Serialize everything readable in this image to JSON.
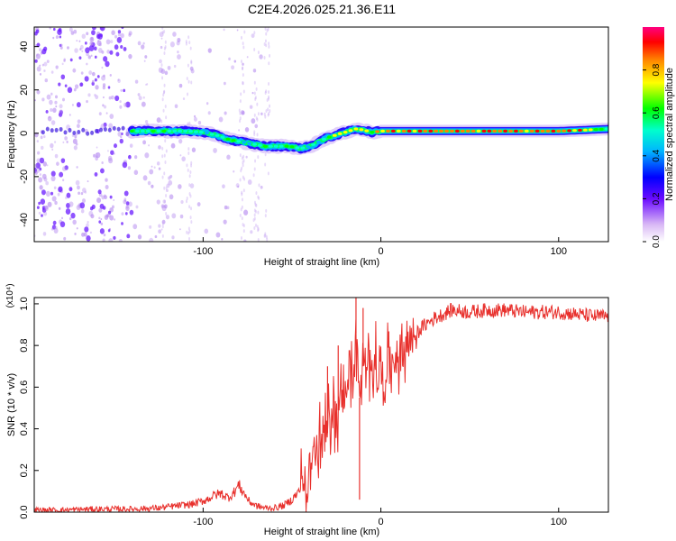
{
  "title": "C2E4.2026.025.21.36.E11",
  "chart_data": [
    {
      "type": "heatmap",
      "xlabel": "Height of straight line (km)",
      "ylabel": "Frequency (Hz)",
      "xlim": [
        -195,
        128
      ],
      "ylim": [
        -50,
        49
      ],
      "xticks": [
        -100,
        0,
        100
      ],
      "yticks": [
        -40,
        -20,
        0,
        20,
        40
      ],
      "colorbar": {
        "label": "Normalized spectral amplitude",
        "range": [
          0,
          1
        ],
        "ticks": [
          0.0,
          0.2,
          0.4,
          0.6,
          0.8
        ],
        "tick_labels": [
          "0.0",
          "0.2",
          "0.4",
          "0.6",
          "0.8"
        ]
      },
      "noise_region_x": [
        -195,
        -62
      ],
      "ridge": {
        "x": [
          -140,
          -125,
          -110,
          -100,
          -92,
          -85,
          -78,
          -72,
          -65,
          -58,
          -52,
          -45,
          -40,
          -35,
          -30,
          -26,
          -22,
          -18,
          -14,
          -10,
          -5,
          0,
          20,
          40,
          60,
          80,
          100,
          115,
          128
        ],
        "freq": [
          1,
          1,
          1,
          0.5,
          -1,
          -3,
          -4,
          -5,
          -6,
          -6,
          -6,
          -7,
          -6,
          -4,
          -2,
          -1,
          0,
          1,
          2,
          1.5,
          0.5,
          1,
          1,
          1,
          1,
          1,
          1,
          1.5,
          2
        ],
        "amplitude": [
          0.55,
          0.6,
          0.55,
          0.5,
          0.55,
          0.6,
          0.55,
          0.5,
          0.55,
          0.6,
          0.65,
          0.55,
          0.5,
          0.55,
          0.6,
          0.75,
          0.85,
          0.8,
          0.9,
          0.8,
          0.7,
          0.85,
          0.9,
          0.9,
          0.9,
          0.9,
          0.95,
          0.85,
          0.5
        ]
      }
    },
    {
      "type": "line",
      "xlabel": "Height of straight line (km)",
      "ylabel": "SNR (10 * v/v)",
      "scale_label": "(x10⁴)",
      "xlim": [
        -195,
        128
      ],
      "ylim": [
        0,
        1.03
      ],
      "xticks": [
        -100,
        0,
        100
      ],
      "yticks": [
        0.0,
        0.2,
        0.4,
        0.6,
        0.8,
        1.0
      ],
      "ytick_labels": [
        "0.0",
        "0.2",
        "0.4",
        "0.6",
        "0.8",
        "1.0"
      ],
      "color": "#e8302c",
      "series": [
        {
          "name": "SNR",
          "x": [
            -195,
            -180,
            -160,
            -140,
            -125,
            -115,
            -105,
            -98,
            -94,
            -90,
            -86,
            -83,
            -80,
            -77,
            -74,
            -70,
            -65,
            -60,
            -55,
            -50,
            -46,
            -42,
            -38,
            -35,
            -32,
            -30,
            -28,
            -25,
            -22,
            -20,
            -18,
            -16,
            -14,
            -12,
            -10,
            -8,
            -6,
            -4,
            -2,
            0,
            4,
            8,
            12,
            16,
            20,
            25,
            30,
            35,
            40,
            50,
            60,
            70,
            80,
            90,
            100,
            110,
            120,
            128
          ],
          "y": [
            0.01,
            0.01,
            0.015,
            0.015,
            0.02,
            0.03,
            0.04,
            0.06,
            0.08,
            0.09,
            0.07,
            0.09,
            0.13,
            0.09,
            0.05,
            0.03,
            0.02,
            0.02,
            0.03,
            0.06,
            0.1,
            0.16,
            0.26,
            0.32,
            0.34,
            0.38,
            0.5,
            0.46,
            0.55,
            0.56,
            0.74,
            0.6,
            0.86,
            0.55,
            0.7,
            0.62,
            0.74,
            0.76,
            0.66,
            0.64,
            0.7,
            0.74,
            0.78,
            0.82,
            0.86,
            0.9,
            0.93,
            0.95,
            0.97,
            0.96,
            0.97,
            0.97,
            0.96,
            0.96,
            0.96,
            0.95,
            0.94,
            0.94
          ]
        }
      ],
      "spikes": [
        {
          "x": -14,
          "y": 1.03
        },
        {
          "x": -12,
          "y": 0.06
        },
        {
          "x": -10,
          "y": 0.98
        },
        {
          "x": -24,
          "y": 0.8
        },
        {
          "x": -30,
          "y": 0.7
        }
      ]
    }
  ]
}
